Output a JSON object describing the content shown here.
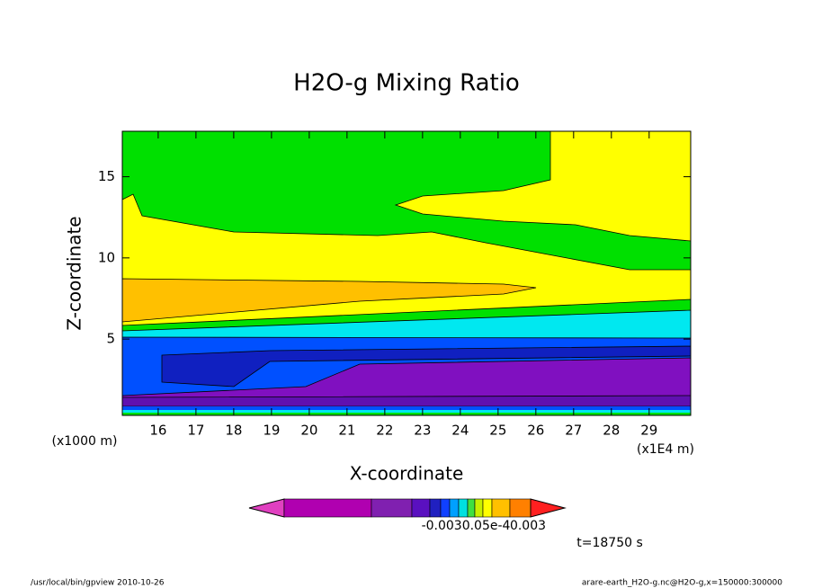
{
  "chart_data": {
    "type": "contour",
    "title": "H2O-g Mixing Ratio",
    "x_label": "X-coordinate",
    "y_label": "Z-coordinate",
    "x_unit": "(x1E4 m)",
    "y_unit": "(x1000 m)",
    "xlim": [
      15.05,
      30.1
    ],
    "xticks": [
      16,
      17,
      18,
      19,
      20,
      21,
      22,
      23,
      24,
      25,
      26,
      27,
      28,
      29
    ],
    "ylim": [
      0.3,
      17.8
    ],
    "yticks": [
      5,
      10,
      15
    ],
    "colorbar_labels": [
      "-0.0030.05e-4",
      "0.003"
    ],
    "colorbar_colors": [
      "#e040c0",
      "#b000b0",
      "#8020b0",
      "#5a10c0",
      "#2020c0",
      "#1040ff",
      "#00a0ff",
      "#00e0e0",
      "#40e040",
      "#c8f000",
      "#ffff00",
      "#ffc000",
      "#ff8000",
      "#ff2020"
    ],
    "time_label": "t=18750 s",
    "footer_left": "/usr/local/bin/gpview  2010-10-26",
    "footer_right": "arare-earth_H2O-g.nc@H2O-g,x=150000:300000"
  }
}
